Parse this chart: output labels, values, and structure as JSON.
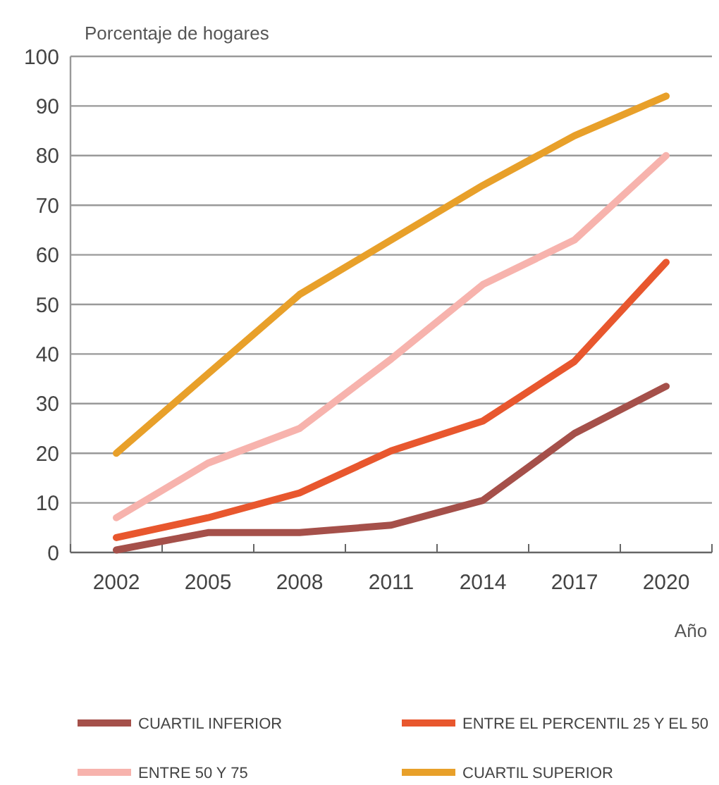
{
  "chart_data": {
    "type": "line",
    "ylabel": "Porcentaje de hogares",
    "xlabel": "Año",
    "categories": [
      "2002",
      "2005",
      "2008",
      "2011",
      "2014",
      "2017",
      "2020"
    ],
    "ylim": [
      0,
      100
    ],
    "yticks": [
      0,
      10,
      20,
      30,
      40,
      50,
      60,
      70,
      80,
      90,
      100
    ],
    "grid": "y",
    "legend": "bottom",
    "marker": "none",
    "line_style": "solid",
    "series": [
      {
        "name": "CUARTIL INFERIOR",
        "color": "#a5504a",
        "values": [
          0.5,
          4,
          4,
          5.5,
          10.5,
          24,
          33.5
        ]
      },
      {
        "name": "ENTRE EL PERCENTIL 25 Y EL 50",
        "color": "#e8572e",
        "values": [
          3,
          7,
          12,
          20.5,
          26.5,
          38.5,
          58.5
        ]
      },
      {
        "name": "ENTRE 50 Y 75",
        "color": "#f7b3ad",
        "values": [
          7,
          18,
          25,
          39,
          54,
          63,
          80
        ]
      },
      {
        "name": "CUARTIL SUPERIOR",
        "color": "#e8a02a",
        "values": [
          20,
          36,
          52,
          63,
          74,
          84,
          92
        ]
      }
    ]
  }
}
